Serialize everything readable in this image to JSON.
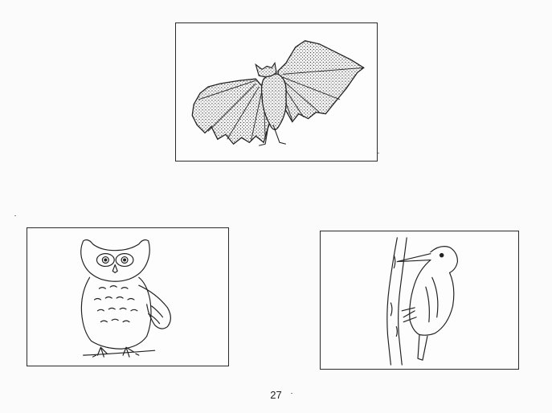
{
  "page": {
    "page_number": "27"
  },
  "cards": [
    {
      "animal": "bat",
      "icon": "bat-drawing"
    },
    {
      "animal": "owl",
      "icon": "owl-drawing"
    },
    {
      "animal": "woodpecker",
      "icon": "woodpecker-drawing"
    }
  ],
  "colors": {
    "ink": "#222222",
    "paper": "#fbfbfb"
  }
}
